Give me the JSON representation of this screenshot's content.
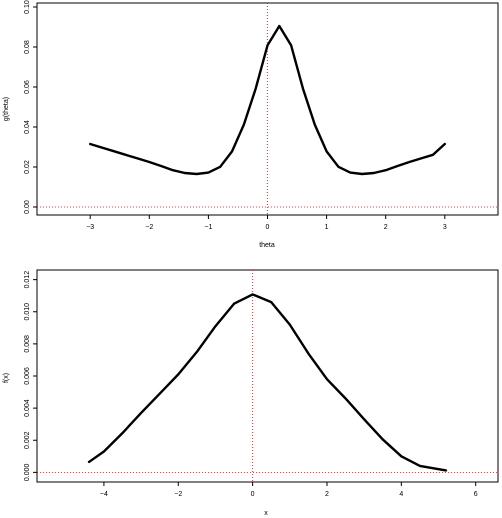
{
  "chart_data": [
    {
      "type": "line",
      "title": "",
      "xlabel": "theta",
      "ylabel": "g(theta)",
      "xlim": [
        -3.9,
        3.9
      ],
      "ylim": [
        -0.004,
        0.102
      ],
      "xticks": [
        -3,
        -2,
        -1,
        0,
        1,
        2,
        3
      ],
      "xtick_labels": [
        "−3",
        "−2",
        "−1",
        "0",
        "1",
        "2",
        "3"
      ],
      "yticks": [
        0.0,
        0.02,
        0.04,
        0.06,
        0.08,
        0.1
      ],
      "ytick_labels": [
        "0.00",
        "0.02",
        "0.04",
        "0.06",
        "0.08",
        "0.10"
      ],
      "grid": false,
      "legend": "none",
      "reference_lines": {
        "vertical_x": 0,
        "horizontal_y": 0,
        "color": "#ff0000",
        "style": "dotted"
      },
      "line_color": "#000000",
      "series": [
        {
          "x": [
            -3.0,
            -2.8,
            -2.6,
            -2.4,
            -2.2,
            -2.0,
            -1.8,
            -1.6,
            -1.4,
            -1.2,
            -1.0,
            -0.8,
            -0.6,
            -0.4,
            -0.2,
            0.0,
            0.2,
            0.4,
            0.6,
            0.8,
            1.0,
            1.2,
            1.4,
            1.6,
            1.8,
            2.0,
            2.2,
            2.4,
            2.6,
            2.8,
            3.0
          ],
          "y": [
            0.0315,
            0.0297,
            0.0279,
            0.0261,
            0.0243,
            0.0225,
            0.0205,
            0.0184,
            0.017,
            0.0165,
            0.0172,
            0.0201,
            0.0278,
            0.0412,
            0.0592,
            0.0808,
            0.0905,
            0.0808,
            0.0592,
            0.0412,
            0.0278,
            0.0201,
            0.0172,
            0.0165,
            0.017,
            0.0184,
            0.0205,
            0.0225,
            0.0243,
            0.0261,
            0.0315
          ]
        }
      ]
    },
    {
      "type": "line",
      "title": "",
      "xlabel": "x",
      "ylabel": "f(x)",
      "xlim": [
        -5.8,
        6.6
      ],
      "ylim": [
        -0.0006,
        0.0126
      ],
      "xticks": [
        -4,
        -2,
        0,
        2,
        4,
        6
      ],
      "xtick_labels": [
        "−4",
        "−2",
        "0",
        "2",
        "4",
        "6"
      ],
      "yticks": [
        0.0,
        0.002,
        0.004,
        0.006,
        0.008,
        0.01,
        0.012
      ],
      "ytick_labels": [
        "0.000",
        "0.002",
        "0.004",
        "0.006",
        "0.008",
        "0.010",
        "0.012"
      ],
      "grid": false,
      "legend": "none",
      "reference_lines": {
        "vertical_x": 0,
        "horizontal_y": 0,
        "color": "#ff0000",
        "style": "dotted"
      },
      "line_color": "#000000",
      "series": [
        {
          "x": [
            -4.4,
            -4.0,
            -3.5,
            -3.0,
            -2.5,
            -2.0,
            -1.5,
            -1.0,
            -0.5,
            0.0,
            0.5,
            1.0,
            1.5,
            2.0,
            2.5,
            3.0,
            3.5,
            4.0,
            4.5,
            5.2
          ],
          "y": [
            0.00065,
            0.0013,
            0.00245,
            0.0037,
            0.0049,
            0.0061,
            0.0075,
            0.0091,
            0.0105,
            0.01108,
            0.0106,
            0.0092,
            0.0074,
            0.0058,
            0.0046,
            0.0033,
            0.00205,
            0.001,
            0.0004,
            0.00012
          ]
        }
      ]
    }
  ]
}
